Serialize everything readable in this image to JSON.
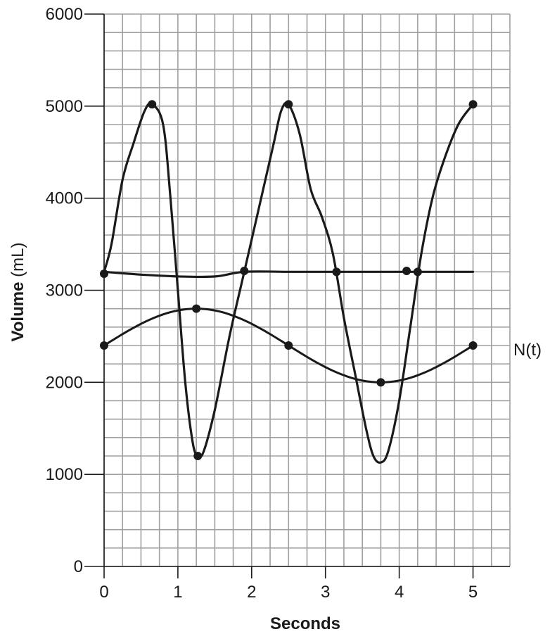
{
  "chart_data": {
    "type": "line",
    "xlabel": "Seconds",
    "ylabel": {
      "bold": "Volume",
      "unit": " (mL)"
    },
    "xlim": [
      0,
      5.5
    ],
    "ylim": [
      0,
      6000
    ],
    "x_ticks": [
      "0",
      "1",
      "2",
      "3",
      "4",
      "5"
    ],
    "y_ticks": [
      "0",
      "1000",
      "2000",
      "3000",
      "4000",
      "5000",
      "6000"
    ],
    "grid": true,
    "grid_step": {
      "x": 0.25,
      "y": 200
    },
    "colors": {
      "line": "#1a1a1a",
      "grid": "#a0a0a0",
      "axis": "#1a1a1a"
    },
    "series": [
      {
        "name": "",
        "style": "hand-drawn",
        "points": [
          {
            "x": 0,
            "y": 3200
          },
          {
            "x": 0.1,
            "y": 3500
          },
          {
            "x": 0.25,
            "y": 4200
          },
          {
            "x": 0.4,
            "y": 4600
          },
          {
            "x": 0.55,
            "y": 4950
          },
          {
            "x": 0.65,
            "y": 5020
          },
          {
            "x": 0.8,
            "y": 4800
          },
          {
            "x": 0.9,
            "y": 4000
          },
          {
            "x": 1.0,
            "y": 3000
          },
          {
            "x": 1.1,
            "y": 2000
          },
          {
            "x": 1.2,
            "y": 1350
          },
          {
            "x": 1.27,
            "y": 1200
          },
          {
            "x": 1.35,
            "y": 1250
          },
          {
            "x": 1.5,
            "y": 1700
          },
          {
            "x": 1.7,
            "y": 2500
          },
          {
            "x": 1.9,
            "y": 3200
          },
          {
            "x": 2.1,
            "y": 3900
          },
          {
            "x": 2.3,
            "y": 4600
          },
          {
            "x": 2.4,
            "y": 4950
          },
          {
            "x": 2.5,
            "y": 5020
          },
          {
            "x": 2.65,
            "y": 4700
          },
          {
            "x": 2.8,
            "y": 4100
          },
          {
            "x": 2.95,
            "y": 3800
          },
          {
            "x": 3.1,
            "y": 3400
          },
          {
            "x": 3.25,
            "y": 2700
          },
          {
            "x": 3.4,
            "y": 2100
          },
          {
            "x": 3.55,
            "y": 1500
          },
          {
            "x": 3.65,
            "y": 1200
          },
          {
            "x": 3.75,
            "y": 1130
          },
          {
            "x": 3.85,
            "y": 1250
          },
          {
            "x": 4.0,
            "y": 1800
          },
          {
            "x": 4.15,
            "y": 2600
          },
          {
            "x": 4.3,
            "y": 3400
          },
          {
            "x": 4.45,
            "y": 4000
          },
          {
            "x": 4.6,
            "y": 4400
          },
          {
            "x": 4.8,
            "y": 4800
          },
          {
            "x": 5.0,
            "y": 5020
          }
        ],
        "markers": [
          {
            "x": 0.65,
            "y": 5020
          },
          {
            "x": 1.27,
            "y": 1200
          },
          {
            "x": 2.5,
            "y": 5020
          },
          {
            "x": 5.0,
            "y": 5020
          }
        ]
      },
      {
        "name": "",
        "style": "hand-drawn",
        "points": [
          {
            "x": 0,
            "y": 3200
          },
          {
            "x": 0.5,
            "y": 3170
          },
          {
            "x": 1.0,
            "y": 3150
          },
          {
            "x": 1.5,
            "y": 3150
          },
          {
            "x": 1.9,
            "y": 3200
          },
          {
            "x": 2.5,
            "y": 3200
          },
          {
            "x": 3.0,
            "y": 3200
          },
          {
            "x": 3.5,
            "y": 3200
          },
          {
            "x": 4.0,
            "y": 3200
          },
          {
            "x": 4.5,
            "y": 3200
          },
          {
            "x": 5.0,
            "y": 3200
          }
        ],
        "markers": [
          {
            "x": 0,
            "y": 3180
          },
          {
            "x": 1.9,
            "y": 3210
          },
          {
            "x": 3.15,
            "y": 3200
          },
          {
            "x": 4.1,
            "y": 3210
          },
          {
            "x": 4.25,
            "y": 3200
          }
        ]
      },
      {
        "name": "N(t)",
        "style": "smooth",
        "function": {
          "mean": 2400,
          "amplitude": 400,
          "period": 5
        },
        "markers": [
          {
            "x": 0,
            "y": 2400
          },
          {
            "x": 1.25,
            "y": 2800
          },
          {
            "x": 2.5,
            "y": 2400
          },
          {
            "x": 3.75,
            "y": 2000
          },
          {
            "x": 5.0,
            "y": 2400
          }
        ]
      }
    ]
  }
}
